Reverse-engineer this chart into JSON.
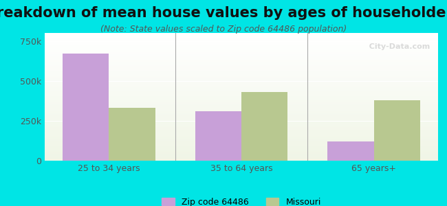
{
  "title": "Breakdown of mean house values by ages of householders",
  "subtitle": "(Note: State values scaled to Zip code 64486 population)",
  "categories": [
    "25 to 34 years",
    "35 to 64 years",
    "65 years+"
  ],
  "zip_values": [
    670000,
    310000,
    120000
  ],
  "state_values": [
    330000,
    430000,
    380000
  ],
  "zip_color": "#c8a0d8",
  "state_color": "#b8c890",
  "background_color": "#00e5e5",
  "plot_bg_top": "#f0f5e8",
  "plot_bg_bottom": "#ffffff",
  "ylim": [
    0,
    800000
  ],
  "yticks": [
    0,
    250000,
    500000,
    750000
  ],
  "ytick_labels": [
    "0",
    "250k",
    "500k",
    "750k"
  ],
  "legend_zip_label": "Zip code 64486",
  "legend_state_label": "Missouri",
  "bar_width": 0.35,
  "title_fontsize": 15,
  "subtitle_fontsize": 9,
  "tick_fontsize": 9,
  "legend_fontsize": 9
}
